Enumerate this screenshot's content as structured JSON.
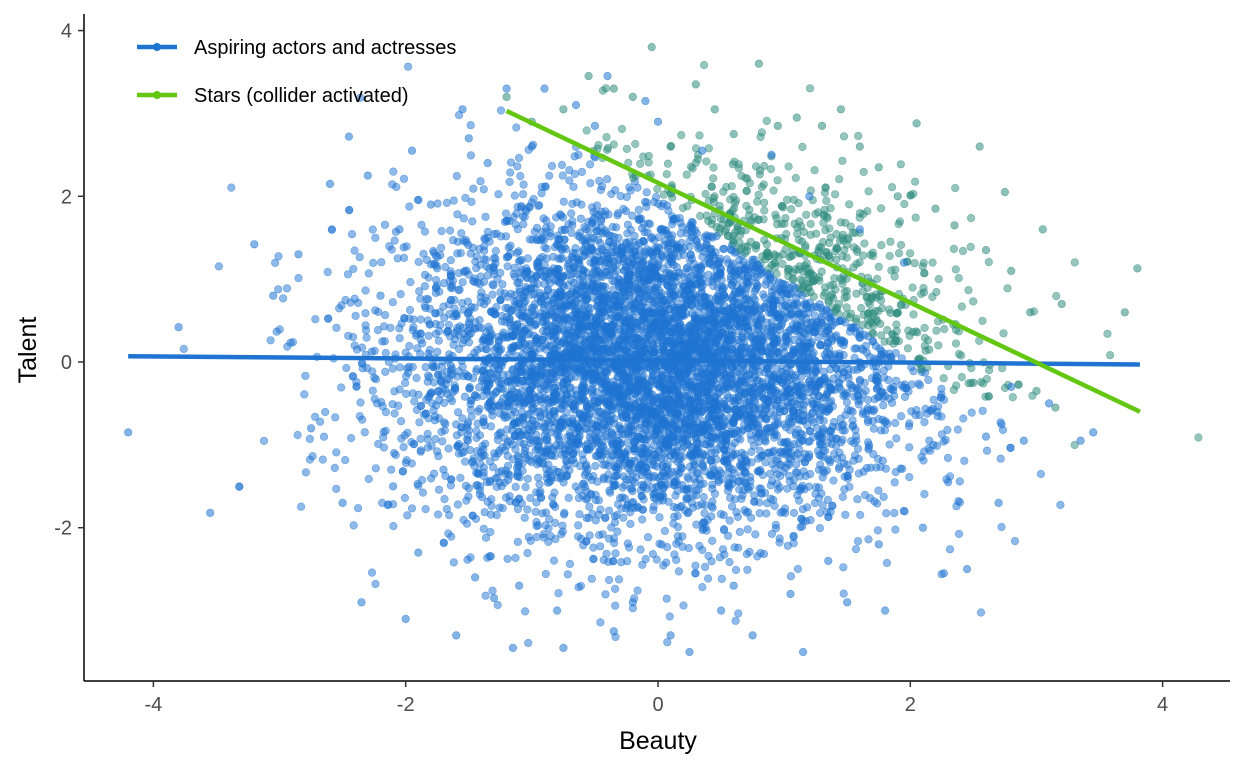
{
  "chart_data": {
    "type": "scatter",
    "title": "",
    "xlabel": "Beauty",
    "ylabel": "Talent",
    "xlim": [
      -4.55,
      4.55
    ],
    "ylim": [
      -3.85,
      4.2
    ],
    "x_ticks": [
      {
        "value": -4,
        "label": "-4"
      },
      {
        "value": -2,
        "label": "-2"
      },
      {
        "value": 0,
        "label": "0"
      },
      {
        "value": 2,
        "label": "2"
      },
      {
        "value": 4,
        "label": "4"
      }
    ],
    "y_ticks": [
      {
        "value": -2,
        "label": "-2"
      },
      {
        "value": 0,
        "label": "0"
      },
      {
        "value": 2,
        "label": "2"
      },
      {
        "value": 4,
        "label": "4"
      }
    ],
    "grid": false,
    "legend_position": "top-left",
    "series": [
      {
        "name": "Aspiring actors and actresses",
        "color": "#1f74d1",
        "points": [
          [
            -4.2,
            -0.85
          ],
          [
            -3.8,
            0.42
          ],
          [
            -3.55,
            -1.82
          ],
          [
            -3.2,
            1.42
          ],
          [
            -3.05,
            0.8
          ],
          [
            -2.85,
            1.3
          ],
          [
            -2.75,
            -0.8
          ],
          [
            -2.6,
            2.15
          ],
          [
            -2.5,
            -1.7
          ],
          [
            -2.45,
            2.72
          ],
          [
            -2.35,
            -2.9
          ],
          [
            -2.3,
            2.25
          ],
          [
            -2.2,
            0.8
          ],
          [
            -2.1,
            -1.5
          ],
          [
            -2.05,
            1.6
          ],
          [
            -2.0,
            -3.1
          ],
          [
            -1.95,
            2.55
          ],
          [
            -1.9,
            -2.3
          ],
          [
            -1.8,
            1.9
          ],
          [
            -1.7,
            -1.3
          ],
          [
            -1.6,
            -3.3
          ],
          [
            -1.55,
            3.05
          ],
          [
            -1.5,
            2.7
          ],
          [
            -1.45,
            -2.6
          ],
          [
            -1.35,
            2.4
          ],
          [
            -1.3,
            -2.85
          ],
          [
            -1.2,
            3.3
          ],
          [
            -1.15,
            -3.45
          ],
          [
            -1.1,
            -2.7
          ],
          [
            -1.0,
            2.6
          ],
          [
            -0.9,
            3.3
          ],
          [
            -0.8,
            -3.0
          ],
          [
            -0.75,
            -3.45
          ],
          [
            -0.65,
            3.1
          ],
          [
            -0.5,
            2.85
          ],
          [
            -0.4,
            3.45
          ],
          [
            -0.35,
            -3.25
          ],
          [
            -0.2,
            -2.9
          ],
          [
            -0.1,
            3.15
          ],
          [
            0.0,
            2.9
          ],
          [
            0.1,
            -3.3
          ],
          [
            0.25,
            -3.5
          ],
          [
            0.35,
            2.55
          ],
          [
            0.5,
            -3.0
          ],
          [
            0.6,
            -2.7
          ],
          [
            0.75,
            -3.3
          ],
          [
            0.9,
            2.5
          ],
          [
            1.05,
            -2.8
          ],
          [
            1.15,
            -3.5
          ],
          [
            1.2,
            2.0
          ],
          [
            1.35,
            -2.4
          ],
          [
            1.5,
            -2.9
          ],
          [
            1.6,
            1.6
          ],
          [
            1.75,
            -2.2
          ],
          [
            1.8,
            -3.0
          ],
          [
            1.95,
            1.2
          ],
          [
            2.1,
            -2.0
          ],
          [
            2.3,
            -1.45
          ],
          [
            2.45,
            -2.5
          ],
          [
            2.6,
            -0.9
          ],
          [
            2.7,
            -1.7
          ],
          [
            2.8,
            -0.3
          ],
          [
            2.9,
            -0.95
          ],
          [
            3.1,
            -0.5
          ],
          [
            3.35,
            -0.95
          ],
          [
            3.45,
            -0.85
          ]
        ]
      },
      {
        "name": "Stars (collider activated)",
        "color": "#63c712",
        "points": [
          [
            -1.2,
            3.2
          ],
          [
            -1.0,
            2.9
          ],
          [
            -0.75,
            3.05
          ],
          [
            -0.55,
            3.45
          ],
          [
            -0.35,
            3.3
          ],
          [
            -0.2,
            3.2
          ],
          [
            -0.05,
            3.8
          ],
          [
            0.1,
            2.6
          ],
          [
            0.3,
            3.35
          ],
          [
            0.45,
            3.05
          ],
          [
            0.6,
            2.75
          ],
          [
            0.8,
            3.6
          ],
          [
            0.95,
            2.85
          ],
          [
            1.1,
            2.95
          ],
          [
            1.3,
            2.85
          ],
          [
            1.45,
            3.05
          ],
          [
            1.6,
            2.6
          ],
          [
            1.75,
            2.35
          ],
          [
            1.9,
            2.0
          ],
          [
            2.05,
            2.88
          ],
          [
            2.2,
            1.85
          ],
          [
            2.35,
            1.65
          ],
          [
            2.55,
            2.6
          ],
          [
            2.6,
            1.35
          ],
          [
            2.75,
            2.05
          ],
          [
            2.8,
            1.1
          ],
          [
            2.95,
            0.6
          ],
          [
            3.05,
            1.6
          ],
          [
            3.2,
            0.7
          ],
          [
            3.7,
            0.6
          ],
          [
            3.8,
            1.13
          ],
          [
            3.0,
            -0.35
          ],
          [
            3.15,
            -0.55
          ],
          [
            2.5,
            -0.25
          ],
          [
            2.3,
            -0.05
          ],
          [
            2.15,
            0.15
          ]
        ]
      }
    ],
    "cloud": {
      "center": [
        0,
        0
      ],
      "sd_x": 1,
      "sd_y": 1,
      "n_points": 7000,
      "color": "#1f74d1",
      "star_color": "#2e8b7e",
      "star_rule": "beauty + talent > 2"
    },
    "fit_lines": [
      {
        "name": "Aspiring actors and actresses",
        "color": "#1f74d1",
        "x": [
          -4.2,
          3.82
        ],
        "y": [
          0.07,
          -0.03
        ]
      },
      {
        "name": "Stars (collider activated)",
        "color": "#63c712",
        "x": [
          -1.2,
          3.82
        ],
        "y": [
          3.03,
          -0.6
        ]
      }
    ]
  }
}
